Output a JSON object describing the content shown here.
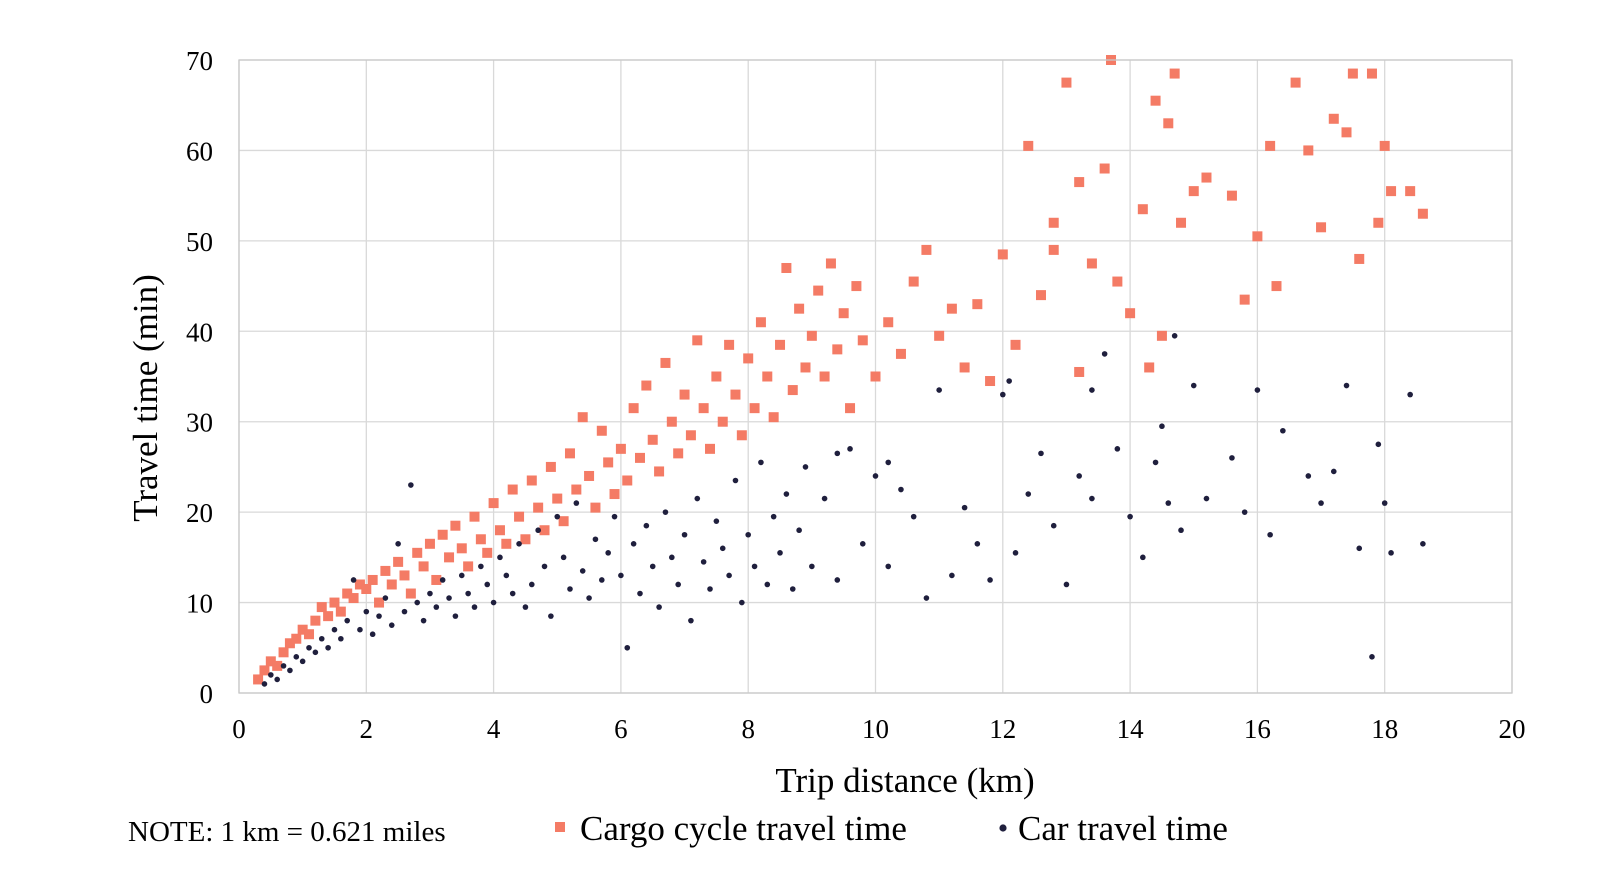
{
  "chart_data": {
    "type": "scatter",
    "title": "",
    "xlabel": "Trip distance (km)",
    "ylabel": "Travel time (min)",
    "xlim": [
      0,
      20
    ],
    "ylim": [
      0,
      70
    ],
    "xticks": [
      0,
      2,
      4,
      6,
      8,
      10,
      12,
      14,
      16,
      18,
      20
    ],
    "yticks": [
      0,
      10,
      20,
      30,
      40,
      50,
      60,
      70
    ],
    "grid": true,
    "legend_position": "bottom",
    "note": "NOTE: 1 km = 0.621 miles",
    "series": [
      {
        "name": "Cargo cycle travel time",
        "marker": "square",
        "color": "#F47B65",
        "points": [
          [
            0.3,
            1.5
          ],
          [
            0.4,
            2.5
          ],
          [
            0.5,
            3.5
          ],
          [
            0.6,
            3.0
          ],
          [
            0.7,
            4.5
          ],
          [
            0.8,
            5.5
          ],
          [
            0.9,
            6.0
          ],
          [
            1.0,
            7.0
          ],
          [
            1.1,
            6.5
          ],
          [
            1.2,
            8.0
          ],
          [
            1.3,
            9.5
          ],
          [
            1.4,
            8.5
          ],
          [
            1.5,
            10.0
          ],
          [
            1.6,
            9.0
          ],
          [
            1.7,
            11.0
          ],
          [
            1.8,
            10.5
          ],
          [
            1.9,
            12.0
          ],
          [
            2.0,
            11.5
          ],
          [
            2.1,
            12.5
          ],
          [
            2.2,
            10.0
          ],
          [
            2.3,
            13.5
          ],
          [
            2.4,
            12.0
          ],
          [
            2.5,
            14.5
          ],
          [
            2.6,
            13.0
          ],
          [
            2.7,
            11.0
          ],
          [
            2.8,
            15.5
          ],
          [
            2.9,
            14.0
          ],
          [
            3.0,
            16.5
          ],
          [
            3.1,
            12.5
          ],
          [
            3.2,
            17.5
          ],
          [
            3.3,
            15.0
          ],
          [
            3.4,
            18.5
          ],
          [
            3.5,
            16.0
          ],
          [
            3.6,
            14.0
          ],
          [
            3.7,
            19.5
          ],
          [
            3.8,
            17.0
          ],
          [
            3.9,
            15.5
          ],
          [
            4.0,
            21.0
          ],
          [
            4.1,
            18.0
          ],
          [
            4.2,
            16.5
          ],
          [
            4.3,
            22.5
          ],
          [
            4.4,
            19.5
          ],
          [
            4.5,
            17.0
          ],
          [
            4.6,
            23.5
          ],
          [
            4.7,
            20.5
          ],
          [
            4.8,
            18.0
          ],
          [
            4.9,
            25.0
          ],
          [
            5.0,
            21.5
          ],
          [
            5.1,
            19.0
          ],
          [
            5.2,
            26.5
          ],
          [
            5.3,
            22.5
          ],
          [
            5.4,
            30.5
          ],
          [
            5.5,
            24.0
          ],
          [
            5.6,
            20.5
          ],
          [
            5.7,
            29.0
          ],
          [
            5.8,
            25.5
          ],
          [
            5.9,
            22.0
          ],
          [
            6.0,
            27.0
          ],
          [
            6.1,
            23.5
          ],
          [
            6.2,
            31.5
          ],
          [
            6.3,
            26.0
          ],
          [
            6.4,
            34.0
          ],
          [
            6.5,
            28.0
          ],
          [
            6.6,
            24.5
          ],
          [
            6.7,
            36.5
          ],
          [
            6.8,
            30.0
          ],
          [
            6.9,
            26.5
          ],
          [
            7.0,
            33.0
          ],
          [
            7.1,
            28.5
          ],
          [
            7.2,
            39.0
          ],
          [
            7.3,
            31.5
          ],
          [
            7.4,
            27.0
          ],
          [
            7.5,
            35.0
          ],
          [
            7.6,
            30.0
          ],
          [
            7.7,
            38.5
          ],
          [
            7.8,
            33.0
          ],
          [
            7.9,
            28.5
          ],
          [
            8.0,
            37.0
          ],
          [
            8.1,
            31.5
          ],
          [
            8.2,
            41.0
          ],
          [
            8.3,
            35.0
          ],
          [
            8.4,
            30.5
          ],
          [
            8.5,
            38.5
          ],
          [
            8.6,
            47.0
          ],
          [
            8.7,
            33.5
          ],
          [
            8.8,
            42.5
          ],
          [
            8.9,
            36.0
          ],
          [
            9.0,
            39.5
          ],
          [
            9.1,
            44.5
          ],
          [
            9.2,
            35.0
          ],
          [
            9.3,
            47.5
          ],
          [
            9.4,
            38.0
          ],
          [
            9.5,
            42.0
          ],
          [
            9.6,
            31.5
          ],
          [
            9.7,
            45.0
          ],
          [
            9.8,
            39.0
          ],
          [
            10.0,
            35.0
          ],
          [
            10.2,
            41.0
          ],
          [
            10.4,
            37.5
          ],
          [
            10.6,
            45.5
          ],
          [
            10.8,
            49.0
          ],
          [
            11.0,
            39.5
          ],
          [
            11.2,
            42.5
          ],
          [
            11.4,
            36.0
          ],
          [
            11.6,
            43.0
          ],
          [
            11.8,
            34.5
          ],
          [
            12.0,
            48.5
          ],
          [
            12.2,
            38.5
          ],
          [
            12.4,
            60.5
          ],
          [
            12.6,
            44.0
          ],
          [
            12.8,
            52.0
          ],
          [
            13.0,
            67.5
          ],
          [
            13.2,
            56.5
          ],
          [
            13.4,
            47.5
          ],
          [
            13.6,
            58.0
          ],
          [
            13.7,
            70.0
          ],
          [
            13.8,
            45.5
          ],
          [
            14.0,
            42.0
          ],
          [
            14.2,
            53.5
          ],
          [
            14.4,
            65.5
          ],
          [
            14.5,
            39.5
          ],
          [
            14.6,
            63.0
          ],
          [
            14.7,
            68.5
          ],
          [
            14.8,
            52.0
          ],
          [
            15.0,
            55.5
          ],
          [
            15.2,
            57.0
          ],
          [
            15.6,
            55.0
          ],
          [
            15.8,
            43.5
          ],
          [
            16.0,
            50.5
          ],
          [
            16.2,
            60.5
          ],
          [
            16.6,
            67.5
          ],
          [
            16.8,
            60.0
          ],
          [
            17.0,
            51.5
          ],
          [
            17.2,
            63.5
          ],
          [
            17.4,
            62.0
          ],
          [
            17.5,
            68.5
          ],
          [
            17.6,
            48.0
          ],
          [
            17.8,
            68.5
          ],
          [
            17.9,
            52.0
          ],
          [
            18.0,
            60.5
          ],
          [
            18.1,
            55.5
          ],
          [
            18.4,
            55.5
          ],
          [
            18.6,
            53.0
          ],
          [
            12.8,
            49.0
          ],
          [
            13.2,
            35.5
          ],
          [
            14.3,
            36.0
          ],
          [
            16.3,
            45.0
          ]
        ]
      },
      {
        "name": "Car travel time",
        "marker": "circle",
        "color": "#1F1F3D",
        "points": [
          [
            0.4,
            1.0
          ],
          [
            0.5,
            2.0
          ],
          [
            0.6,
            1.5
          ],
          [
            0.7,
            3.0
          ],
          [
            0.8,
            2.5
          ],
          [
            0.9,
            4.0
          ],
          [
            1.0,
            3.5
          ],
          [
            1.1,
            5.0
          ],
          [
            1.2,
            4.5
          ],
          [
            1.3,
            6.0
          ],
          [
            1.4,
            5.0
          ],
          [
            1.5,
            7.0
          ],
          [
            1.6,
            6.0
          ],
          [
            1.7,
            8.0
          ],
          [
            1.8,
            12.5
          ],
          [
            1.9,
            7.0
          ],
          [
            2.0,
            9.0
          ],
          [
            2.1,
            6.5
          ],
          [
            2.2,
            8.5
          ],
          [
            2.3,
            10.5
          ],
          [
            2.4,
            7.5
          ],
          [
            2.5,
            16.5
          ],
          [
            2.6,
            9.0
          ],
          [
            2.7,
            23.0
          ],
          [
            2.8,
            10.0
          ],
          [
            2.9,
            8.0
          ],
          [
            3.0,
            11.0
          ],
          [
            3.1,
            9.5
          ],
          [
            3.2,
            12.5
          ],
          [
            3.3,
            10.5
          ],
          [
            3.4,
            8.5
          ],
          [
            3.5,
            13.0
          ],
          [
            3.6,
            11.0
          ],
          [
            3.7,
            9.5
          ],
          [
            3.8,
            14.0
          ],
          [
            3.9,
            12.0
          ],
          [
            4.0,
            10.0
          ],
          [
            4.1,
            15.0
          ],
          [
            4.2,
            13.0
          ],
          [
            4.3,
            11.0
          ],
          [
            4.4,
            16.5
          ],
          [
            4.5,
            9.5
          ],
          [
            4.6,
            12.0
          ],
          [
            4.7,
            18.0
          ],
          [
            4.8,
            14.0
          ],
          [
            4.9,
            8.5
          ],
          [
            5.0,
            19.5
          ],
          [
            5.1,
            15.0
          ],
          [
            5.2,
            11.5
          ],
          [
            5.3,
            21.0
          ],
          [
            5.4,
            13.5
          ],
          [
            5.5,
            10.5
          ],
          [
            5.6,
            17.0
          ],
          [
            5.7,
            12.5
          ],
          [
            5.8,
            15.5
          ],
          [
            5.9,
            19.5
          ],
          [
            6.0,
            13.0
          ],
          [
            6.1,
            5.0
          ],
          [
            6.2,
            16.5
          ],
          [
            6.3,
            11.0
          ],
          [
            6.4,
            18.5
          ],
          [
            6.5,
            14.0
          ],
          [
            6.6,
            9.5
          ],
          [
            6.7,
            20.0
          ],
          [
            6.8,
            15.0
          ],
          [
            6.9,
            12.0
          ],
          [
            7.0,
            17.5
          ],
          [
            7.1,
            8.0
          ],
          [
            7.2,
            21.5
          ],
          [
            7.3,
            14.5
          ],
          [
            7.4,
            11.5
          ],
          [
            7.5,
            19.0
          ],
          [
            7.6,
            16.0
          ],
          [
            7.7,
            13.0
          ],
          [
            7.8,
            23.5
          ],
          [
            7.9,
            10.0
          ],
          [
            8.0,
            17.5
          ],
          [
            8.1,
            14.0
          ],
          [
            8.2,
            25.5
          ],
          [
            8.3,
            12.0
          ],
          [
            8.4,
            19.5
          ],
          [
            8.5,
            15.5
          ],
          [
            8.6,
            22.0
          ],
          [
            8.7,
            11.5
          ],
          [
            8.8,
            18.0
          ],
          [
            8.9,
            25.0
          ],
          [
            9.0,
            14.0
          ],
          [
            9.2,
            21.5
          ],
          [
            9.4,
            12.5
          ],
          [
            9.6,
            27.0
          ],
          [
            9.8,
            16.5
          ],
          [
            10.0,
            24.0
          ],
          [
            10.2,
            14.0
          ],
          [
            10.4,
            22.5
          ],
          [
            10.6,
            19.5
          ],
          [
            10.8,
            10.5
          ],
          [
            11.0,
            33.5
          ],
          [
            11.2,
            13.0
          ],
          [
            11.4,
            20.5
          ],
          [
            11.6,
            16.5
          ],
          [
            11.8,
            12.5
          ],
          [
            12.0,
            33.0
          ],
          [
            12.2,
            15.5
          ],
          [
            12.4,
            22.0
          ],
          [
            12.6,
            26.5
          ],
          [
            12.8,
            18.5
          ],
          [
            13.0,
            12.0
          ],
          [
            13.2,
            24.0
          ],
          [
            13.4,
            21.5
          ],
          [
            13.6,
            37.5
          ],
          [
            13.8,
            27.0
          ],
          [
            14.0,
            19.5
          ],
          [
            14.2,
            15.0
          ],
          [
            14.4,
            25.5
          ],
          [
            14.5,
            29.5
          ],
          [
            14.6,
            21.0
          ],
          [
            14.7,
            39.5
          ],
          [
            14.8,
            18.0
          ],
          [
            15.0,
            34.0
          ],
          [
            15.2,
            21.5
          ],
          [
            15.6,
            26.0
          ],
          [
            15.8,
            20.0
          ],
          [
            16.0,
            33.5
          ],
          [
            16.2,
            17.5
          ],
          [
            16.4,
            29.0
          ],
          [
            16.8,
            24.0
          ],
          [
            17.0,
            21.0
          ],
          [
            17.2,
            24.5
          ],
          [
            17.4,
            34.0
          ],
          [
            17.6,
            16.0
          ],
          [
            17.8,
            4.0
          ],
          [
            17.9,
            27.5
          ],
          [
            18.0,
            21.0
          ],
          [
            18.1,
            15.5
          ],
          [
            18.4,
            33.0
          ],
          [
            18.6,
            16.5
          ],
          [
            13.4,
            33.5
          ],
          [
            12.1,
            34.5
          ],
          [
            9.4,
            26.5
          ],
          [
            10.2,
            25.5
          ]
        ]
      }
    ]
  },
  "legend": {
    "cycle_label": "Cargo cycle travel time",
    "car_label": "Car travel time"
  },
  "colors": {
    "cycle": "#F47B65",
    "car": "#1F1F3D",
    "grid": "#D9D9D9"
  }
}
